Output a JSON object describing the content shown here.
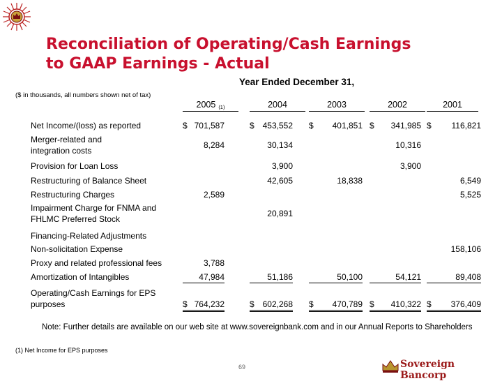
{
  "title_line1": "Reconciliation of Operating/Cash Earnings",
  "title_line2": "to GAAP Earnings - Actual",
  "year_header": "Year Ended December 31,",
  "units_note": "($ in thousands, all numbers shown net of tax)",
  "columns": [
    {
      "label": "2005",
      "sup": "(1)"
    },
    {
      "label": "2004"
    },
    {
      "label": "2003"
    },
    {
      "label": "2002"
    },
    {
      "label": "2001"
    }
  ],
  "rows": [
    {
      "label": "Net Income/(loss) as reported",
      "values": [
        "$ 701,587",
        "$ 453,552",
        "$ 401,851",
        "$ 341,985",
        "$ 116,821"
      ]
    },
    {
      "label": "Merger-related and\nintegration costs",
      "values": [
        "8,284",
        "30,134",
        "",
        "10,316",
        ""
      ]
    },
    {
      "label": "Provision for Loan Loss",
      "values": [
        "",
        "3,900",
        "",
        "3,900",
        ""
      ]
    },
    {
      "label": "Restructuring of Balance Sheet",
      "values": [
        "",
        "42,605",
        "18,838",
        "",
        "6,549"
      ]
    },
    {
      "label": "Restructuring Charges",
      "values": [
        "2,589",
        "",
        "",
        "",
        "5,525"
      ]
    },
    {
      "label": "Impairment Charge for FNMA and\nFHLMC Preferred Stock",
      "values": [
        "",
        "20,891",
        "",
        "",
        ""
      ]
    },
    {
      "label": "Financing-Related Adjustments",
      "values": [
        "",
        "",
        "",
        "",
        ""
      ]
    },
    {
      "label": "Non-solicitation Expense",
      "values": [
        "",
        "",
        "",
        "",
        "158,106"
      ]
    },
    {
      "label": "Proxy and related professional fees",
      "values": [
        "3,788",
        "",
        "",
        "",
        ""
      ]
    },
    {
      "label": "Amortization of Intangibles",
      "values": [
        "47,984",
        "51,186",
        "50,100",
        "54,121",
        "89,408"
      ]
    },
    {
      "label": "Operating/Cash Earnings for EPS\npurposes",
      "values": [
        "$ 764,232",
        "$ 602,268",
        "$ 470,789",
        "$ 410,322",
        "$ 376,409"
      ]
    }
  ],
  "note": "Note:  Further details are available on our web site at www.sovereignbank.com and in our Annual Reports to Shareholders",
  "footnote": "(1) Net Income for EPS purposes",
  "page_number": "69",
  "brand": "Sovereign Bancorp",
  "colors": {
    "title": "#c8102e",
    "brand": "#9b1b1b"
  }
}
